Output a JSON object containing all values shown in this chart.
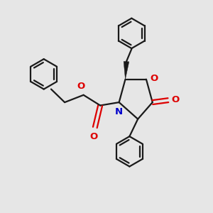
{
  "background_color": "#e6e6e6",
  "bond_color": "#1a1a1a",
  "N_color": "#0000cc",
  "O_color": "#dd0000",
  "line_width": 1.6,
  "figsize": [
    3.0,
    3.0
  ],
  "dpi": 100,
  "xlim": [
    0,
    10
  ],
  "ylim": [
    0,
    10
  ]
}
